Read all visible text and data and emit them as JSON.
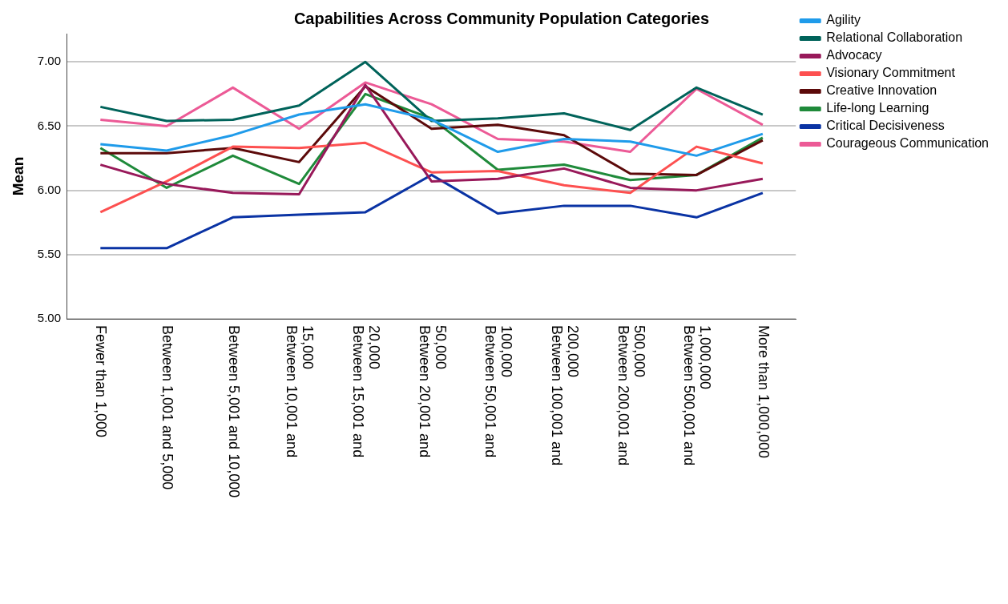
{
  "chart_data": {
    "type": "line",
    "title": "Capabilities Across Community Population Categories",
    "ylabel": "Mean",
    "categories": [
      "Fewer than 1,000",
      "Between 1,001 and 5,000",
      "Between 5,001 and 10,000",
      "Between 10,001 and 15,000",
      "Between 15,001 and 20,000",
      "Between 20,001 and 50,000",
      "Between 50,001 and 100,000",
      "Between 100,001 and 200,000",
      "Between 200,001 and 500,000",
      "Between 500,001 and 1,000,000",
      "More than 1,000,000"
    ],
    "series": [
      {
        "name": "Agility",
        "color": "#1f9bea",
        "values": [
          6.36,
          6.31,
          6.43,
          6.59,
          6.67,
          6.55,
          6.3,
          6.4,
          6.38,
          6.27,
          6.44
        ]
      },
      {
        "name": "Relational Collaboration",
        "color": "#00635a",
        "values": [
          6.65,
          6.54,
          6.55,
          6.66,
          7.0,
          6.54,
          6.56,
          6.6,
          6.47,
          6.8,
          6.59
        ]
      },
      {
        "name": "Advocacy",
        "color": "#98195a",
        "values": [
          6.2,
          6.05,
          5.98,
          5.97,
          6.82,
          6.07,
          6.09,
          6.17,
          6.02,
          6.0,
          6.09
        ]
      },
      {
        "name": "Visionary Commitment",
        "color": "#fd5050",
        "values": [
          5.83,
          6.07,
          6.34,
          6.33,
          6.37,
          6.14,
          6.15,
          6.04,
          5.98,
          6.34,
          6.21
        ]
      },
      {
        "name": "Creative Innovation",
        "color": "#5c0a0a",
        "values": [
          6.29,
          6.29,
          6.33,
          6.22,
          6.81,
          6.48,
          6.51,
          6.43,
          6.13,
          6.12,
          6.39
        ]
      },
      {
        "name": "Life-long Learning",
        "color": "#1f8a3a",
        "values": [
          6.33,
          6.02,
          6.27,
          6.05,
          6.75,
          6.56,
          6.16,
          6.2,
          6.08,
          6.12,
          6.41
        ]
      },
      {
        "name": "Critical Decisiveness",
        "color": "#0a33a4",
        "values": [
          5.55,
          5.55,
          5.79,
          5.81,
          5.83,
          6.12,
          5.82,
          5.88,
          5.88,
          5.79,
          5.98
        ]
      },
      {
        "name": "Courageous Communication",
        "color": "#ec5a96",
        "values": [
          6.55,
          6.5,
          6.8,
          6.48,
          6.84,
          6.67,
          6.4,
          6.38,
          6.3,
          6.79,
          6.51
        ]
      }
    ],
    "ylim": [
      5,
      7.22
    ],
    "yticks": [
      {
        "value": 5,
        "label": "5.00"
      },
      {
        "value": 5.5,
        "label": "5.50"
      },
      {
        "value": 6,
        "label": "6.00"
      },
      {
        "value": 6.5,
        "label": "6.50"
      },
      {
        "value": 7,
        "label": "7.00"
      }
    ],
    "grid": "y",
    "legend": "top right",
    "marker": "none",
    "line_style": "solid"
  }
}
